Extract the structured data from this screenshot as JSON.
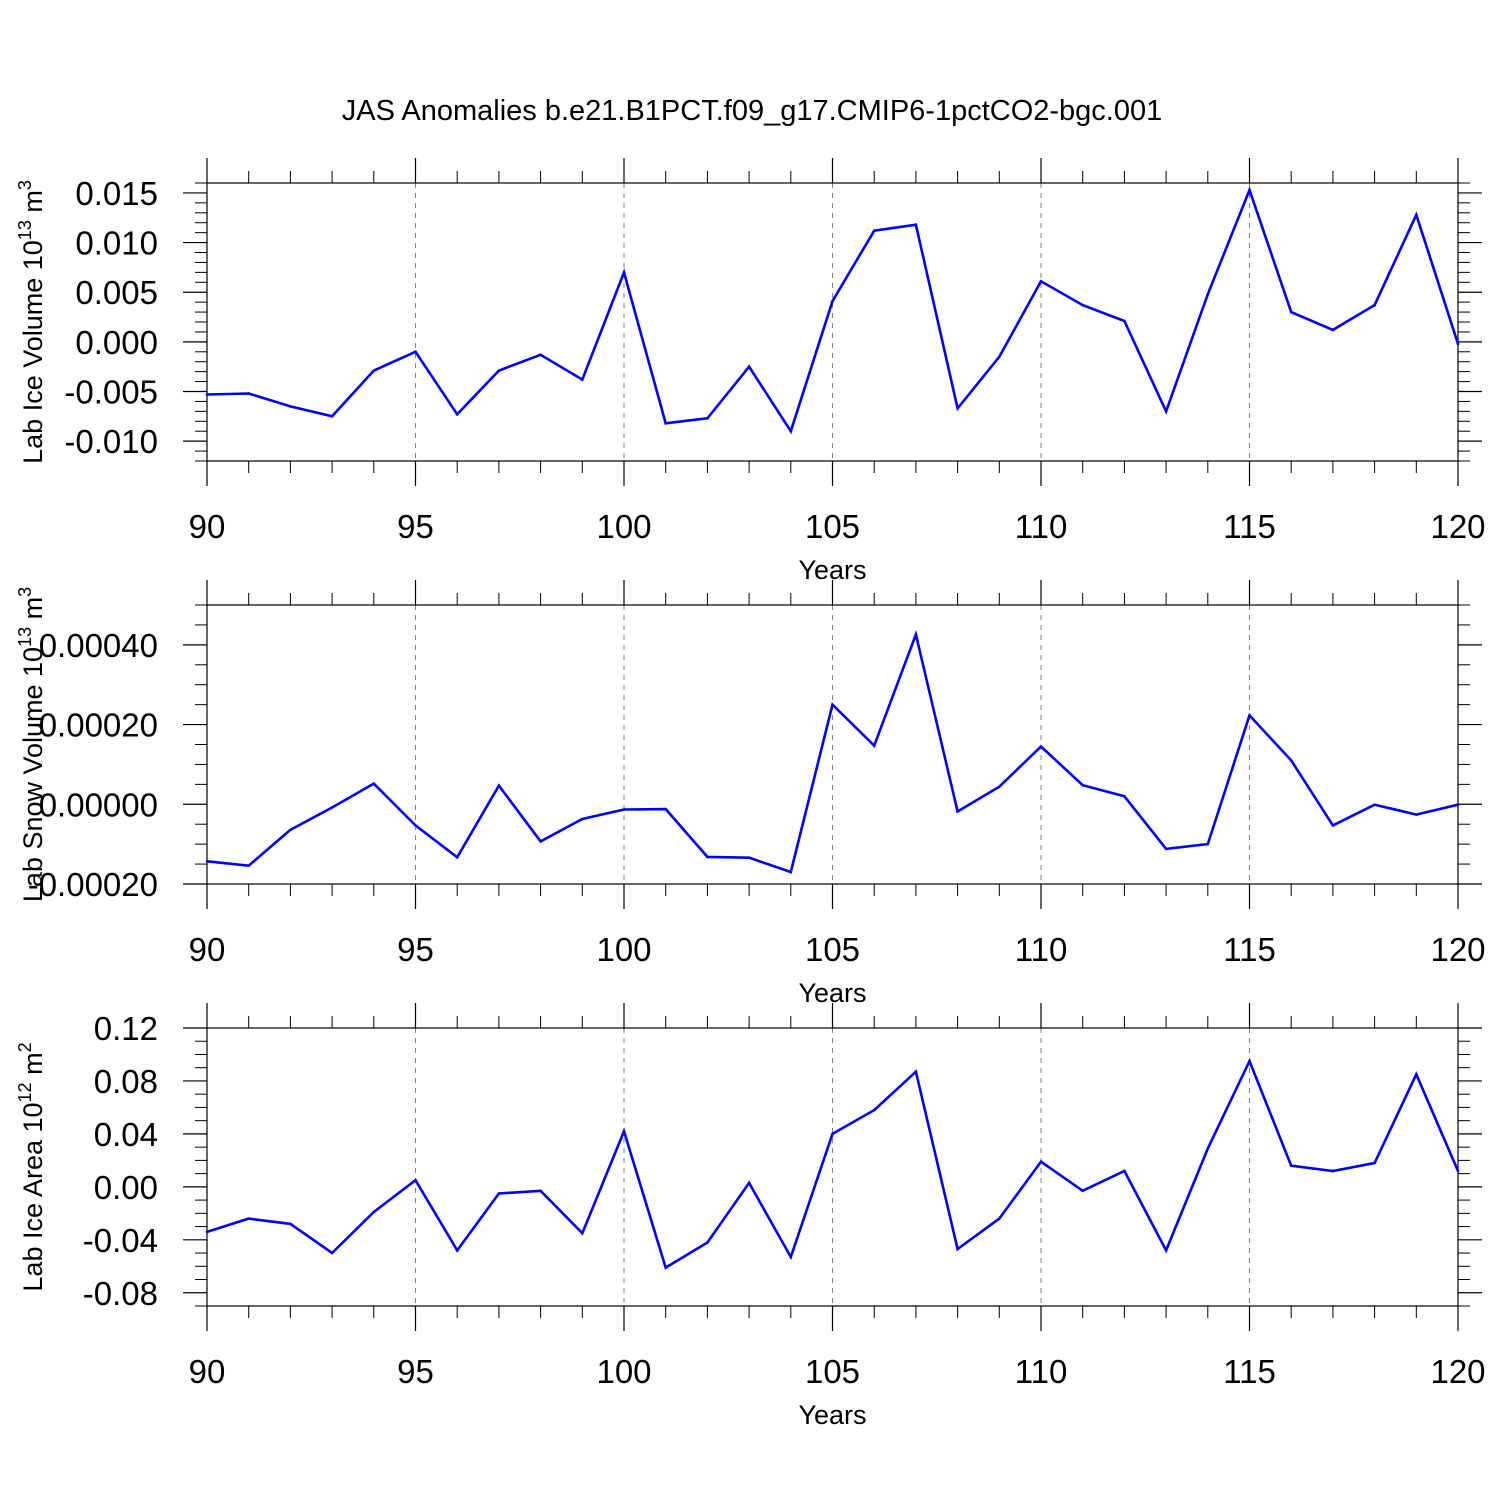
{
  "title": "JAS Anomalies b.e21.B1PCT.f09_g17.CMIP6-1pctCO2-bgc.001",
  "colors": {
    "series": "#0000ff",
    "axis": "#000000",
    "grid": "#808080"
  },
  "chart_data": [
    {
      "type": "line",
      "ylabel": "Lab Ice Volume 10",
      "ylabel_exp": "13",
      "ylabel_unit": " m",
      "ylabel_unit_exp": "3",
      "xlabel": "Years",
      "xlim": [
        90,
        120
      ],
      "ylim": [
        -0.012,
        0.016
      ],
      "xticks": [
        90,
        95,
        100,
        105,
        110,
        115,
        120
      ],
      "xtick_labels": [
        "90",
        "95",
        "100",
        "105",
        "110",
        "115",
        "120"
      ],
      "yticks": [
        -0.01,
        -0.005,
        0,
        0.005,
        0.01,
        0.015
      ],
      "ytick_labels": [
        "-0.010",
        "-0.005",
        "0.000",
        "0.005",
        "0.010",
        "0.015"
      ],
      "yminor_step": 0.001,
      "x": [
        90,
        91,
        92,
        93,
        94,
        95,
        96,
        97,
        98,
        99,
        100,
        101,
        102,
        103,
        104,
        105,
        106,
        107,
        108,
        109,
        110,
        111,
        112,
        113,
        114,
        115,
        116,
        117,
        118,
        119,
        120
      ],
      "values": [
        -0.0053,
        -0.0052,
        -0.0065,
        -0.0075,
        -0.0029,
        -0.001,
        -0.0073,
        -0.0029,
        -0.0013,
        -0.0038,
        0.007,
        -0.0082,
        -0.0077,
        -0.0025,
        -0.009,
        0.0041,
        0.0112,
        0.0118,
        -0.0067,
        -0.0015,
        0.0061,
        0.0037,
        0.0021,
        -0.007,
        0.0048,
        0.0153,
        0.003,
        0.0012,
        0.0037,
        0.0128,
        -0.0002
      ]
    },
    {
      "type": "line",
      "ylabel": "Lab Snow Volume 10",
      "ylabel_exp": "13",
      "ylabel_unit": " m",
      "ylabel_unit_exp": "3",
      "xlabel": "Years",
      "xlim": [
        90,
        120
      ],
      "ylim": [
        -0.0002,
        0.0005
      ],
      "xticks": [
        90,
        95,
        100,
        105,
        110,
        115,
        120
      ],
      "xtick_labels": [
        "90",
        "95",
        "100",
        "105",
        "110",
        "115",
        "120"
      ],
      "yticks": [
        -0.0002,
        0,
        0.0002,
        0.0004
      ],
      "ytick_labels": [
        "-0.00020",
        "0.00000",
        "0.00020",
        "0.00040"
      ],
      "yminor_step": 5e-05,
      "x": [
        90,
        91,
        92,
        93,
        94,
        95,
        96,
        97,
        98,
        99,
        100,
        101,
        102,
        103,
        104,
        105,
        106,
        107,
        108,
        109,
        110,
        111,
        112,
        113,
        114,
        115,
        116,
        117,
        118,
        119,
        120
      ],
      "values": [
        -0.000143,
        -0.000154,
        -6.4e-05,
        -8e-06,
        5.2e-05,
        -5.3e-05,
        -0.000133,
        4.7e-05,
        -9.3e-05,
        -3.7e-05,
        -1.3e-05,
        -1.2e-05,
        -0.000132,
        -0.000134,
        -0.00017,
        0.00025,
        0.000147,
        0.000426,
        -1.8e-05,
        4.4e-05,
        0.000145,
        4.8e-05,
        2e-05,
        -0.000112,
        -0.0001,
        0.000223,
        0.00011,
        -5.3e-05,
        -1e-06,
        -2.6e-05,
        -1e-06
      ]
    },
    {
      "type": "line",
      "ylabel": "Lab Ice Area 10",
      "ylabel_exp": "12",
      "ylabel_unit": " m",
      "ylabel_unit_exp": "2",
      "xlabel": "Years",
      "xlim": [
        90,
        120
      ],
      "ylim": [
        -0.09,
        0.12
      ],
      "xticks": [
        90,
        95,
        100,
        105,
        110,
        115,
        120
      ],
      "xtick_labels": [
        "90",
        "95",
        "100",
        "105",
        "110",
        "115",
        "120"
      ],
      "yticks": [
        -0.08,
        -0.04,
        0,
        0.04,
        0.08,
        0.12
      ],
      "ytick_labels": [
        "-0.08",
        "-0.04",
        "0.00",
        "0.04",
        "0.08",
        "0.12"
      ],
      "yminor_step": 0.01,
      "x": [
        90,
        91,
        92,
        93,
        94,
        95,
        96,
        97,
        98,
        99,
        100,
        101,
        102,
        103,
        104,
        105,
        106,
        107,
        108,
        109,
        110,
        111,
        112,
        113,
        114,
        115,
        116,
        117,
        118,
        119,
        120
      ],
      "values": [
        -0.034,
        -0.024,
        -0.028,
        -0.05,
        -0.019,
        0.005,
        -0.048,
        -0.005,
        -0.003,
        -0.035,
        0.042,
        -0.061,
        -0.042,
        0.003,
        -0.053,
        0.04,
        0.058,
        0.087,
        -0.047,
        -0.024,
        0.019,
        -0.003,
        0.012,
        -0.048,
        0.029,
        0.095,
        0.016,
        0.012,
        0.018,
        0.085,
        0.012
      ]
    }
  ]
}
